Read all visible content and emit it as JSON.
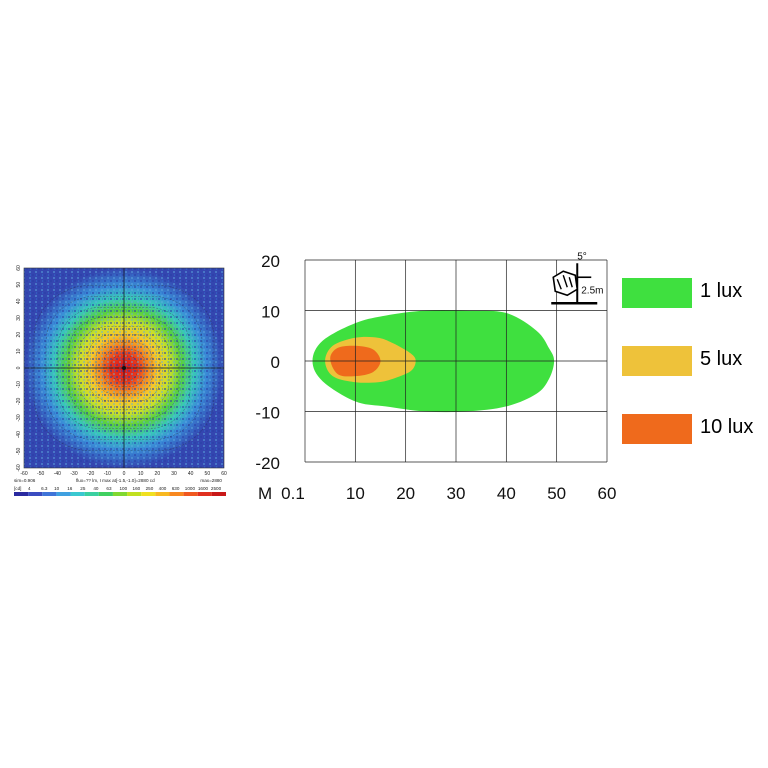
{
  "chart_data": [
    {
      "type": "heatmap",
      "x_ticks": [
        "-60",
        "-50",
        "-40",
        "-30",
        "-20",
        "-10",
        "0",
        "10",
        "20",
        "30",
        "40",
        "50",
        "60"
      ],
      "y_ticks": [
        "60",
        "50",
        "40",
        "30",
        "20",
        "10",
        "0",
        "-10",
        "-20",
        "-30",
        "-40",
        "-50",
        "-60"
      ],
      "xlim": [
        -60,
        60
      ],
      "ylim": [
        -60,
        60
      ],
      "peak": [
        0,
        0
      ],
      "footer_left": "sim=0.906",
      "footer_mid": "flux=?? lm, I max at[-1.5,-1.0]=2880 cd",
      "footer_right": "max=2880",
      "scale_unit": "[cd]",
      "scale_values": [
        "4",
        "6.3",
        "10",
        "16",
        "25",
        "40",
        "63",
        "100",
        "160",
        "250",
        "400",
        "630",
        "1000",
        "1600",
        "2500"
      ],
      "scale_colors": [
        "#2a2aa0",
        "#3a4cc0",
        "#3f74d8",
        "#3fa0e0",
        "#3ac8d0",
        "#3ad0a0",
        "#40d060",
        "#80d830",
        "#c0e020",
        "#f0e020",
        "#f8b820",
        "#f88820",
        "#f05820",
        "#e03020",
        "#c81818"
      ]
    },
    {
      "type": "area",
      "x_prefix": "M",
      "x_tick_labels": [
        "0.1",
        "10",
        "20",
        "30",
        "40",
        "50",
        "60"
      ],
      "y_tick_labels": [
        "20",
        "10",
        "0",
        "-10",
        "-20"
      ],
      "xlim": [
        0,
        60
      ],
      "ylim": [
        -20,
        20
      ],
      "grid": true,
      "legend_position": "right",
      "series": [
        {
          "name": "1 lux",
          "color": "#3fe03f",
          "x": [
            1.5,
            3.5,
            10,
            16,
            24,
            32,
            40,
            46,
            48.5,
            49.5,
            48.5,
            46,
            40,
            32,
            24,
            16,
            10,
            3.5
          ],
          "y": [
            0,
            4,
            7.5,
            9,
            10,
            10,
            9.5,
            6,
            2.5,
            0,
            -3.5,
            -6.5,
            -9,
            -10,
            -10,
            -9,
            -8,
            -4
          ]
        },
        {
          "name": "5 lux",
          "color": "#eec23a",
          "x": [
            4,
            5.5,
            10,
            14.5,
            17.5,
            21,
            22,
            21,
            17.5,
            14.5,
            10,
            5.5
          ],
          "y": [
            0,
            3,
            4.6,
            4.6,
            3.5,
            1.5,
            0,
            -2,
            -3.5,
            -4.2,
            -4.2,
            -3
          ]
        },
        {
          "name": "10 lux",
          "color": "#ef6a1c",
          "x": [
            5,
            6.5,
            10,
            13.5,
            15,
            13.5,
            10,
            6.5
          ],
          "y": [
            0.5,
            2.6,
            3,
            2.3,
            0,
            -2.2,
            -3,
            -2.6
          ]
        }
      ],
      "inset": {
        "angle_label": "5°",
        "height_label": "2.5m"
      }
    }
  ]
}
